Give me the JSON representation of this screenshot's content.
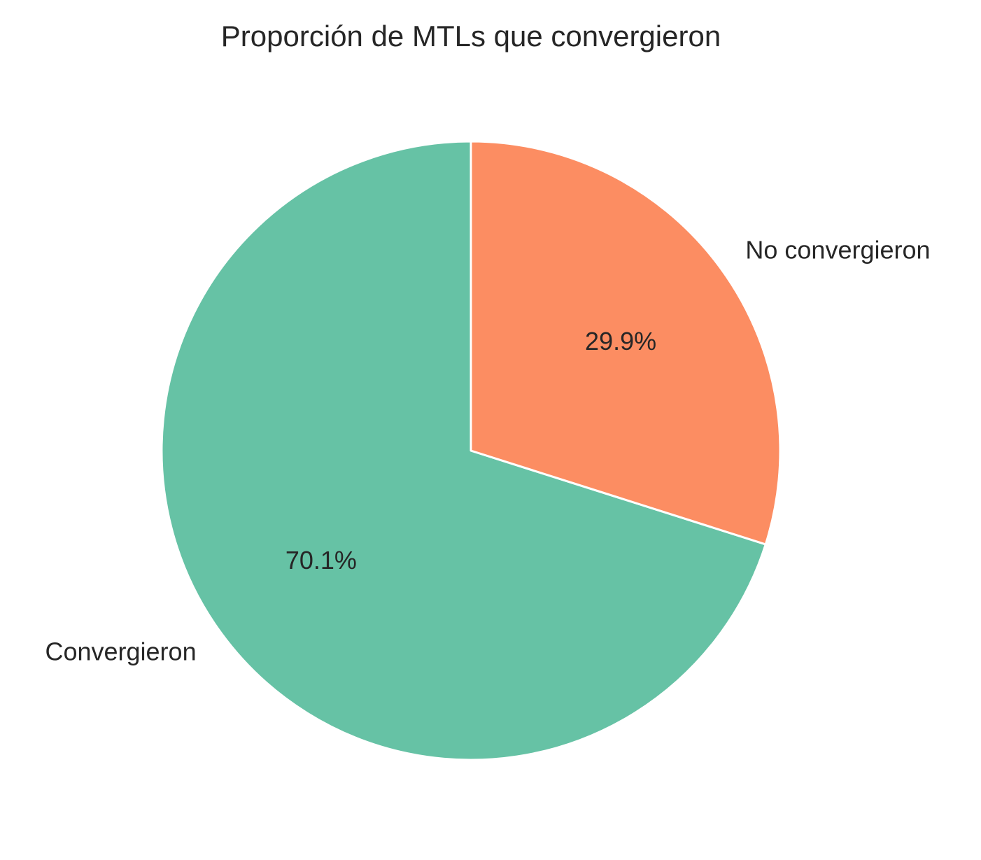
{
  "chart_data": {
    "type": "pie",
    "title": "Proporción de MTLs que convergieron",
    "slices": [
      {
        "label": "Convergieron",
        "value": 70.1,
        "pct_label": "70.1%",
        "color": "#66c2a5"
      },
      {
        "label": "No convergieron",
        "value": 29.9,
        "pct_label": "29.9%",
        "color": "#fc8d62"
      }
    ],
    "start_angle_deg": 90,
    "direction": "counterclockwise",
    "edge_color": "#ffffff"
  }
}
